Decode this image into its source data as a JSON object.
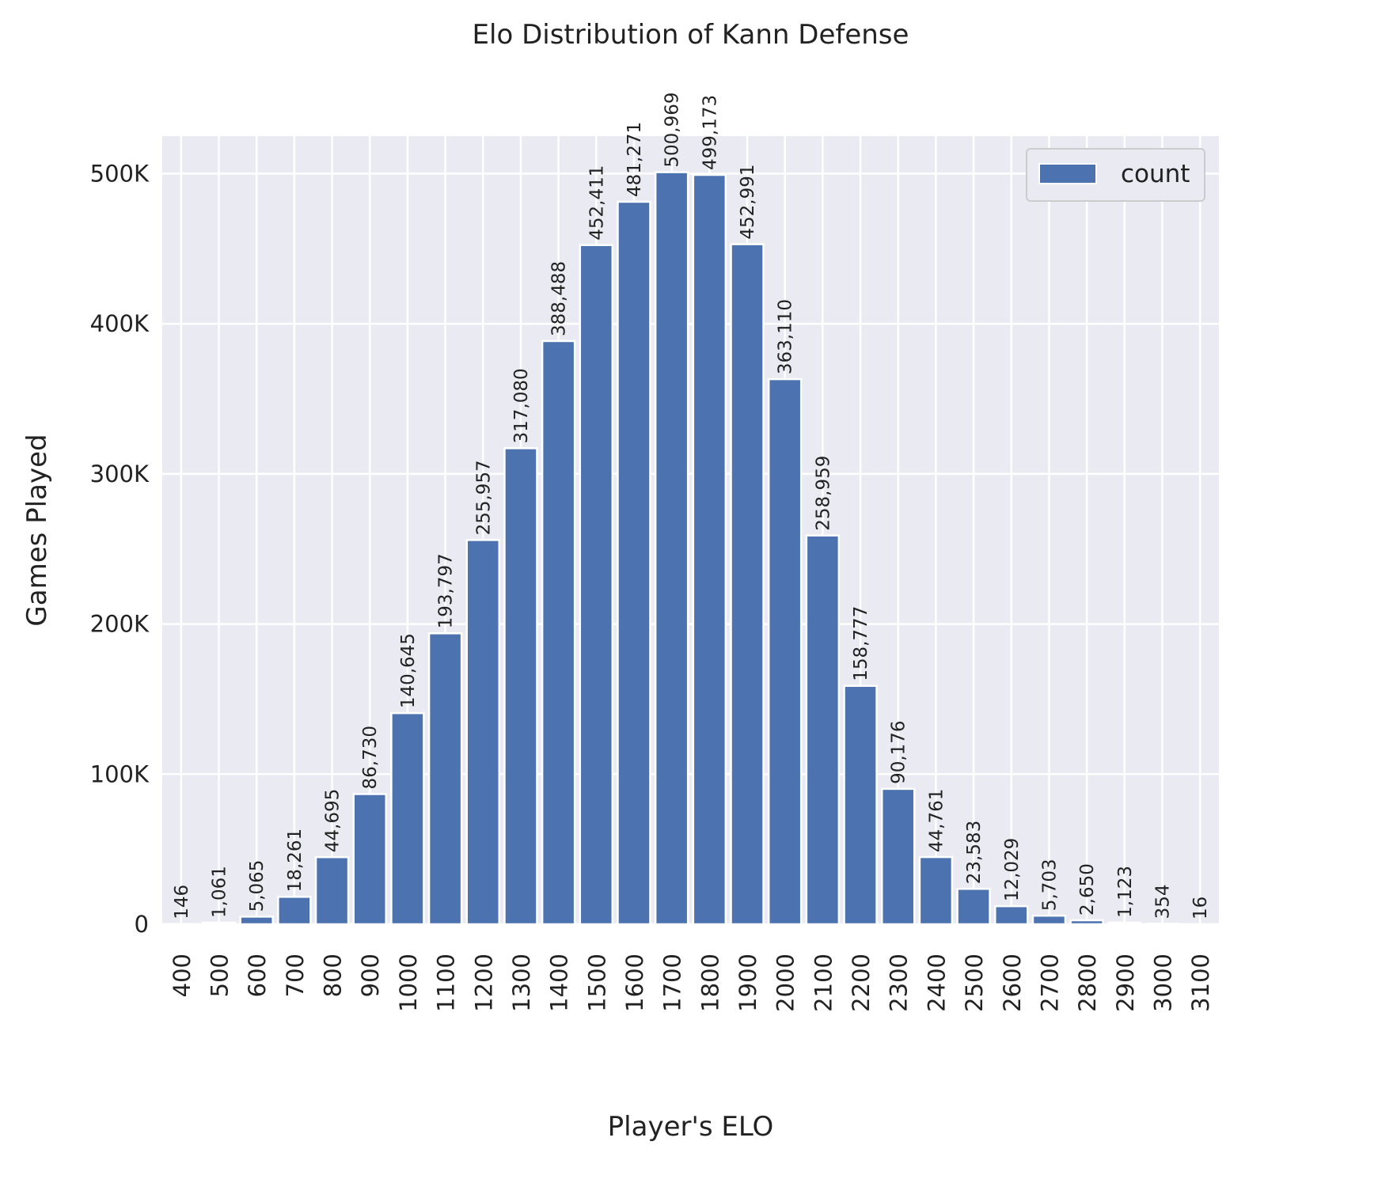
{
  "chart_data": {
    "type": "bar",
    "title": "Elo Distribution of Kann Defense",
    "xlabel": "Player's ELO",
    "ylabel": "Games Played",
    "categories": [
      "400",
      "500",
      "600",
      "700",
      "800",
      "900",
      "1000",
      "1100",
      "1200",
      "1300",
      "1400",
      "1500",
      "1600",
      "1700",
      "1800",
      "1900",
      "2000",
      "2100",
      "2200",
      "2300",
      "2400",
      "2500",
      "2600",
      "2700",
      "2800",
      "2900",
      "3000",
      "3100"
    ],
    "series": [
      {
        "name": "count",
        "color": "#4c72b0",
        "values": [
          146,
          1061,
          5065,
          18261,
          44695,
          86730,
          140645,
          193797,
          255957,
          317080,
          388488,
          452411,
          481271,
          500969,
          499173,
          452991,
          363110,
          258959,
          158777,
          90176,
          44761,
          23583,
          12029,
          5703,
          2650,
          1123,
          354,
          16
        ],
        "value_labels": [
          "146",
          "1,061",
          "5,065",
          "18,261",
          "44,695",
          "86,730",
          "140,645",
          "193,797",
          "255,957",
          "317,080",
          "388,488",
          "452,411",
          "481,271",
          "500,969",
          "499,173",
          "452,991",
          "363,110",
          "258,959",
          "158,777",
          "90,176",
          "44,761",
          "23,583",
          "12,029",
          "5,703",
          "2,650",
          "1,123",
          "354",
          "16"
        ]
      }
    ],
    "yticks": [
      0,
      100000,
      200000,
      300000,
      400000,
      500000
    ],
    "ytick_labels": [
      "0",
      "100K",
      "200K",
      "300K",
      "400K",
      "500K"
    ],
    "ylim": [
      0,
      525000
    ],
    "grid": true,
    "legend": {
      "position": "top-right",
      "entries": [
        "count"
      ]
    },
    "background": "#eaeaf2"
  }
}
